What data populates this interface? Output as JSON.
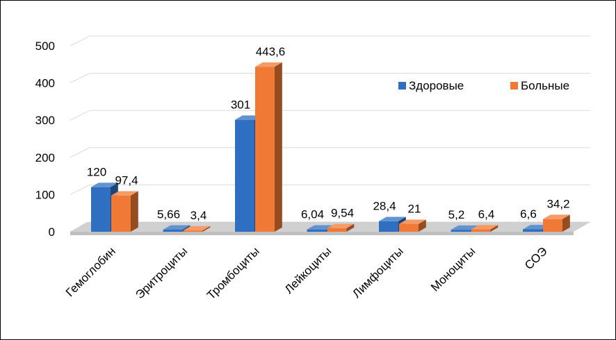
{
  "chart_data": {
    "type": "bar",
    "categories": [
      "Гемоглобин",
      "Эритроциты",
      "Тромбоциты",
      "Лейкоциты",
      "Лимфоциты",
      "Моноциты",
      "СОЭ"
    ],
    "series": [
      {
        "name": "Здоровые",
        "values": [
          120,
          5.66,
          301,
          6.04,
          28.4,
          5.2,
          6.6
        ],
        "labels": [
          "120",
          "5,66",
          "301",
          "6,04",
          "28,4",
          "5,2",
          "6,6"
        ],
        "color": "#2E6FC2"
      },
      {
        "name": "Больные",
        "values": [
          97.4,
          3.4,
          443.6,
          9.54,
          21,
          6.4,
          34.2
        ],
        "labels": [
          "97,4",
          "3,4",
          "443,6",
          "9,54",
          "21",
          "6,4",
          "34,2"
        ],
        "color": "#F07A35"
      }
    ],
    "yticks": [
      "0",
      "100",
      "200",
      "300",
      "400",
      "500"
    ],
    "ylim": [
      0,
      500
    ],
    "grid": true,
    "legend": "top-right",
    "style": "3d-clustered-column"
  }
}
